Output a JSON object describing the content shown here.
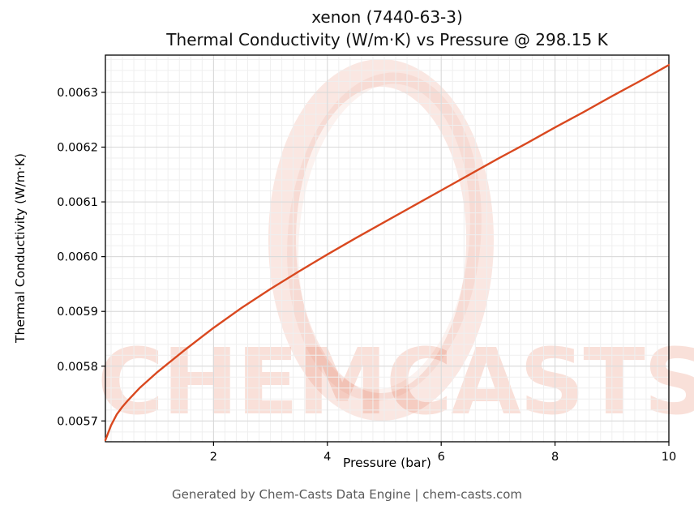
{
  "chart_data": {
    "type": "line",
    "title_line1": "xenon (7440-63-3)",
    "title_line2": "Thermal Conductivity (W/m·K) vs Pressure @ 298.15 K",
    "xlabel": "Pressure (bar)",
    "ylabel": "Thermal Conductivity (W/m·K)",
    "xlim": [
      0.1,
      10
    ],
    "ylim": [
      0.005662,
      0.006368
    ],
    "xticks": [
      2,
      4,
      6,
      8,
      10
    ],
    "xtick_labels": [
      "2",
      "4",
      "6",
      "8",
      "10"
    ],
    "yticks": [
      0.0057,
      0.0058,
      0.0059,
      0.006,
      0.0061,
      0.0062,
      0.0063
    ],
    "ytick_labels": [
      "0.0057",
      "0.0058",
      "0.0059",
      "0.0060",
      "0.0061",
      "0.0062",
      "0.0063"
    ],
    "grid": true,
    "x_minor_step": 0.2,
    "y_minor_step": 2e-05,
    "line_color": "#d9481f",
    "series": [
      {
        "name": "xenon thermal conductivity @ 298.15 K",
        "x": [
          0.1,
          0.2,
          0.3,
          0.4,
          0.5,
          0.7,
          1,
          1.5,
          2,
          2.5,
          3,
          3.5,
          4,
          4.5,
          5,
          5.5,
          6,
          6.5,
          7,
          7.5,
          8,
          8.5,
          9,
          9.5,
          10
        ],
        "y": [
          0.005665,
          0.005692,
          0.005712,
          0.005726,
          0.005738,
          0.00576,
          0.005788,
          0.00583,
          0.00587,
          0.005907,
          0.005941,
          0.005973,
          0.006004,
          0.006034,
          0.006063,
          0.006092,
          0.006121,
          0.00615,
          0.006179,
          0.006207,
          0.006236,
          0.006264,
          0.006293,
          0.006321,
          0.00635
        ]
      }
    ]
  },
  "watermark": {
    "text": "CHEMCASTS",
    "color": "#d9481f"
  },
  "footer": {
    "text": "Generated by Chem-Casts Data Engine | chem-casts.com"
  }
}
